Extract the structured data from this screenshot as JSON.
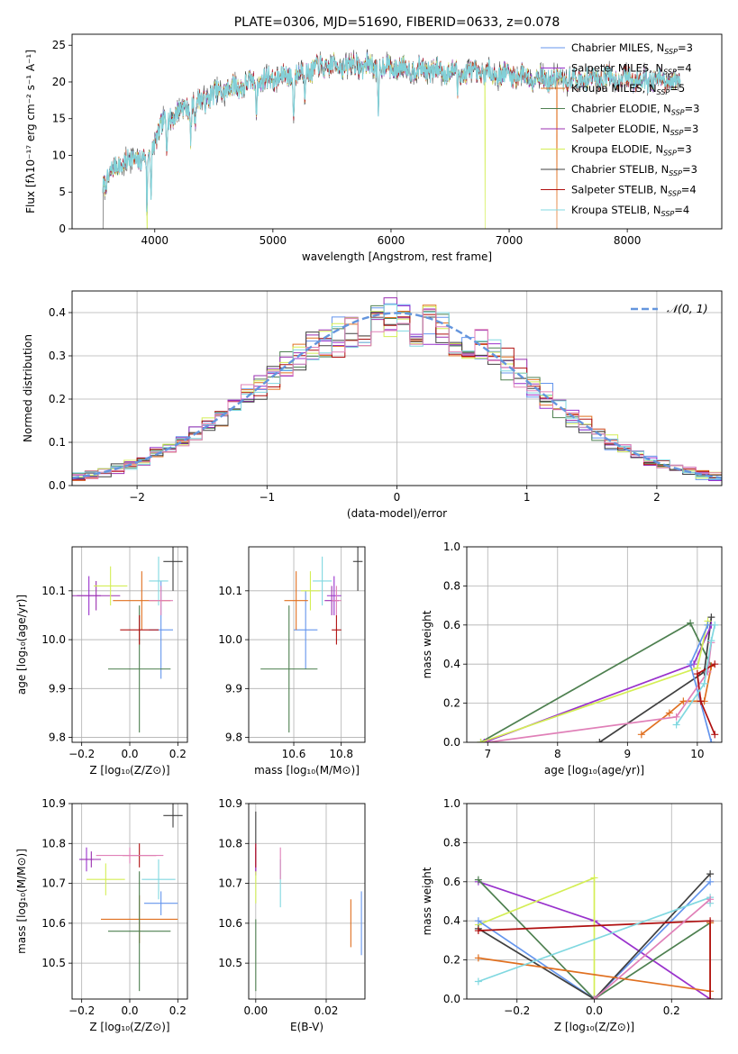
{
  "colors": {
    "Chabrier MILES": "#6495ed",
    "Salpeter MILES": "#9932cc",
    "Kroupa MILES": "#e07020",
    "Chabrier ELODIE": "#4e8050",
    "Salpeter ELODIE": "#9b30b0",
    "Kroupa ELODIE": "#d4ee55",
    "Chabrier STELIB": "#404040",
    "Salpeter STELIB": "#b01010",
    "Kroupa STELIB": "#80d8e0",
    "extra_pink": "#e080b8",
    "gaussian": "#6495dd",
    "grid": "#b0b0b0"
  },
  "chart_data": [
    {
      "id": "spectrum",
      "type": "line",
      "title": "PLATE=0306, MJD=51690, FIBERID=0633, z=0.078",
      "xlabel": "wavelength [Angstrom, rest frame]",
      "ylabel": "Flux [fλ10⁻¹⁷ erg cm⁻² s⁻¹ A⁻¹]",
      "xlim": [
        3300,
        8800
      ],
      "ylim": [
        0,
        26.5
      ],
      "xticks": [
        4000,
        5000,
        6000,
        7000,
        8000
      ],
      "yticks": [
        0,
        5,
        10,
        15,
        20,
        25
      ],
      "grid": false,
      "legend": "upper-right",
      "legend_entries": [
        {
          "label": "Chabrier MILES, N",
          "sub": "SSP",
          "suffix": "=3",
          "key": "Chabrier MILES"
        },
        {
          "label": "Salpeter MILES, N",
          "sub": "SSP",
          "suffix": "=4",
          "key": "Salpeter MILES"
        },
        {
          "label": "Kroupa MILES, N",
          "sub": "SSP",
          "suffix": "=5",
          "key": "Kroupa MILES"
        },
        {
          "label": "Chabrier ELODIE, N",
          "sub": "SSP",
          "suffix": "=3",
          "key": "Chabrier ELODIE"
        },
        {
          "label": "Salpeter ELODIE, N",
          "sub": "SSP",
          "suffix": "=3",
          "key": "Salpeter ELODIE"
        },
        {
          "label": "Kroupa ELODIE, N",
          "sub": "SSP",
          "suffix": "=3",
          "key": "Kroupa ELODIE"
        },
        {
          "label": "Chabrier STELIB, N",
          "sub": "SSP",
          "suffix": "=3",
          "key": "Chabrier STELIB"
        },
        {
          "label": "Salpeter STELIB, N",
          "sub": "SSP",
          "suffix": "=4",
          "key": "Salpeter STELIB"
        },
        {
          "label": "Kroupa STELIB, N",
          "sub": "SSP",
          "suffix": "=4",
          "key": "Kroupa STELIB"
        }
      ],
      "continuum": [
        [
          3560,
          6.0
        ],
        [
          3700,
          9.0
        ],
        [
          3850,
          9.5
        ],
        [
          3950,
          10.0
        ],
        [
          4050,
          14.0
        ],
        [
          4200,
          16.0
        ],
        [
          4400,
          17.5
        ],
        [
          4600,
          19.0
        ],
        [
          4800,
          19.8
        ],
        [
          5000,
          20.5
        ],
        [
          5200,
          21.0
        ],
        [
          5400,
          22.0
        ],
        [
          5600,
          22.3
        ],
        [
          5800,
          22.2
        ],
        [
          6000,
          22.0
        ],
        [
          6200,
          21.8
        ],
        [
          6400,
          21.5
        ],
        [
          6600,
          21.3
        ],
        [
          6800,
          21.2
        ],
        [
          7000,
          21.0
        ],
        [
          7200,
          20.7
        ],
        [
          7400,
          20.3
        ],
        [
          7600,
          20.3
        ],
        [
          7800,
          20.6
        ],
        [
          8000,
          20.5
        ],
        [
          8200,
          20.2
        ],
        [
          8450,
          19.9
        ]
      ],
      "absorption_lines": [
        [
          3934,
          8
        ],
        [
          3969,
          7
        ],
        [
          4101,
          4
        ],
        [
          4304,
          5
        ],
        [
          4341,
          3
        ],
        [
          4861,
          4
        ],
        [
          5175,
          6
        ],
        [
          5270,
          3
        ],
        [
          5892,
          7
        ],
        [
          6563,
          3
        ],
        [
          8498,
          3
        ],
        [
          8542,
          4
        ],
        [
          8662,
          4
        ]
      ],
      "model_dropouts": [
        {
          "model": "Kroupa MILES",
          "x": 7405
        },
        {
          "model": "Kroupa ELODIE",
          "x": 6795
        },
        {
          "model": "Kroupa ELODIE",
          "x": 3935
        },
        {
          "model": "Chabrier STELIB",
          "x": 3560
        }
      ]
    },
    {
      "id": "residuals",
      "type": "histogram",
      "xlabel": "(data-model)/error",
      "ylabel": "Normed distribution",
      "xlim": [
        -2.5,
        2.5
      ],
      "ylim": [
        0,
        0.45
      ],
      "xticks": [
        -2,
        -1,
        0,
        1,
        2
      ],
      "yticks": [
        0.0,
        0.1,
        0.2,
        0.3,
        0.4
      ],
      "bin_width": 0.1,
      "bin_start": -2.5,
      "grid": true,
      "legend": "upper-right",
      "gaussian_label": "𝒩(0, 1)",
      "gaussian": {
        "mean": 0,
        "sigma": 1
      }
    },
    {
      "id": "age_vs_Z",
      "type": "errorbar",
      "xlabel": "Z [log₁₀(Z/Z⊙)]",
      "ylabel": "age  [log₁₀(age/yr)]",
      "xlim": [
        -0.24,
        0.24
      ],
      "ylim": [
        9.79,
        10.19
      ],
      "xticks": [
        -0.2,
        0.0,
        0.2
      ],
      "yticks": [
        9.8,
        9.9,
        10.0,
        10.1
      ],
      "grid": true,
      "points": [
        {
          "model": "Chabrier MILES",
          "x": 0.13,
          "y": 10.02,
          "xerr": 0.05,
          "yerr": 0.1
        },
        {
          "model": "Salpeter MILES",
          "x": -0.17,
          "y": 10.09,
          "xerr": 0.05,
          "yerr": 0.04
        },
        {
          "model": "Kroupa MILES",
          "x": 0.05,
          "y": 10.08,
          "xerr": 0.12,
          "yerr": 0.06
        },
        {
          "model": "Chabrier ELODIE",
          "x": 0.04,
          "y": 9.94,
          "xerr": 0.13,
          "yerr": 0.13
        },
        {
          "model": "Salpeter ELODIE",
          "x": -0.14,
          "y": 10.09,
          "xerr": 0.1,
          "yerr": 0.03
        },
        {
          "model": "Kroupa ELODIE",
          "x": -0.08,
          "y": 10.11,
          "xerr": 0.07,
          "yerr": 0.04
        },
        {
          "model": "Chabrier STELIB",
          "x": 0.18,
          "y": 10.16,
          "xerr": 0.04,
          "yerr": 0.06
        },
        {
          "model": "Salpeter STELIB",
          "x": 0.04,
          "y": 10.02,
          "xerr": 0.08,
          "yerr": 0.03
        },
        {
          "model": "Kroupa STELIB",
          "x": 0.12,
          "y": 10.12,
          "xerr": 0.04,
          "yerr": 0.05
        },
        {
          "model": "extra_pink",
          "x": 0.13,
          "y": 10.08,
          "xerr": 0.05,
          "yerr": 0.03
        }
      ]
    },
    {
      "id": "age_vs_mass",
      "type": "errorbar",
      "xlabel": "mass [log₁₀(M/M⊙)]",
      "ylabel": "",
      "xlim": [
        10.41,
        10.9
      ],
      "ylim": [
        9.79,
        10.19
      ],
      "xticks": [
        10.6,
        10.8
      ],
      "yticks": [
        9.8,
        9.9,
        10.0,
        10.1
      ],
      "grid": true,
      "points": [
        {
          "model": "Chabrier MILES",
          "x": 10.65,
          "y": 10.02,
          "xerr": 0.05,
          "yerr": 0.08
        },
        {
          "model": "Salpeter MILES",
          "x": 10.77,
          "y": 10.09,
          "xerr": 0.03,
          "yerr": 0.04
        },
        {
          "model": "Kroupa MILES",
          "x": 10.61,
          "y": 10.08,
          "xerr": 0.05,
          "yerr": 0.06
        },
        {
          "model": "Chabrier ELODIE",
          "x": 10.58,
          "y": 9.94,
          "xerr": 0.12,
          "yerr": 0.13
        },
        {
          "model": "Salpeter ELODIE",
          "x": 10.76,
          "y": 10.08,
          "xerr": 0.03,
          "yerr": 0.03
        },
        {
          "model": "Kroupa ELODIE",
          "x": 10.67,
          "y": 10.1,
          "xerr": 0.04,
          "yerr": 0.04
        },
        {
          "model": "Chabrier STELIB",
          "x": 10.87,
          "y": 10.16,
          "xerr": 0.02,
          "yerr": 0.06
        },
        {
          "model": "Salpeter STELIB",
          "x": 10.78,
          "y": 10.02,
          "xerr": 0.02,
          "yerr": 0.03
        },
        {
          "model": "Kroupa STELIB",
          "x": 10.72,
          "y": 10.12,
          "xerr": 0.04,
          "yerr": 0.05
        },
        {
          "model": "extra_pink",
          "x": 10.78,
          "y": 10.08,
          "xerr": 0.02,
          "yerr": 0.03
        }
      ]
    },
    {
      "id": "weight_vs_age",
      "type": "line",
      "xlabel": "age  [log₁₀(age/yr)]",
      "ylabel": "mass weight",
      "xlim": [
        6.7,
        10.35
      ],
      "ylim": [
        0,
        1
      ],
      "xticks": [
        7,
        8,
        9,
        10
      ],
      "yticks": [
        0.0,
        0.2,
        0.4,
        0.6,
        0.8,
        1.0
      ],
      "grid": true,
      "series": [
        {
          "model": "Chabrier ELODIE",
          "points": [
            [
              10.2,
              0.39
            ],
            [
              9.9,
              0.61
            ],
            [
              6.9,
              0.0
            ]
          ]
        },
        {
          "model": "Chabrier STELIB",
          "points": [
            [
              8.6,
              0.0
            ],
            [
              10.1,
              0.36
            ],
            [
              10.2,
              0.64
            ]
          ]
        },
        {
          "model": "Salpeter MILES",
          "points": [
            [
              6.95,
              0.0
            ],
            [
              9.95,
              0.4
            ],
            [
              10.2,
              0.6
            ]
          ]
        },
        {
          "model": "Kroupa ELODIE",
          "points": [
            [
              6.9,
              0.0
            ],
            [
              10.0,
              0.38
            ],
            [
              10.15,
              0.62
            ]
          ]
        },
        {
          "model": "Chabrier MILES",
          "points": [
            [
              10.15,
              0.6
            ],
            [
              9.9,
              0.4
            ],
            [
              10.2,
              0.0
            ]
          ]
        },
        {
          "model": "Kroupa MILES",
          "points": [
            [
              9.2,
              0.04
            ],
            [
              9.6,
              0.15
            ],
            [
              9.8,
              0.21
            ],
            [
              10.1,
              0.21
            ],
            [
              10.2,
              0.39
            ]
          ]
        },
        {
          "model": "extra_pink",
          "points": [
            [
              7.0,
              0.0
            ],
            [
              9.7,
              0.13
            ],
            [
              10.15,
              0.36
            ],
            [
              10.2,
              0.51
            ]
          ]
        },
        {
          "model": "Salpeter STELIB",
          "points": [
            [
              10.25,
              0.04
            ],
            [
              10.05,
              0.21
            ],
            [
              10.0,
              0.35
            ],
            [
              10.25,
              0.4
            ]
          ]
        },
        {
          "model": "Kroupa STELIB",
          "points": [
            [
              9.7,
              0.09
            ],
            [
              10.1,
              0.3
            ],
            [
              10.2,
              0.52
            ],
            [
              10.25,
              0.6
            ]
          ]
        }
      ]
    },
    {
      "id": "mass_vs_Z",
      "type": "errorbar",
      "xlabel": "Z [log₁₀(Z/Z⊙)]",
      "ylabel": "mass [log₁₀(M/M⊙)]",
      "xlim": [
        -0.24,
        0.24
      ],
      "ylim": [
        10.41,
        10.9
      ],
      "xticks": [
        -0.2,
        0.0,
        0.2
      ],
      "yticks": [
        10.5,
        10.6,
        10.7,
        10.8,
        10.9
      ],
      "grid": true,
      "points": [
        {
          "model": "Chabrier MILES",
          "x": 0.13,
          "y": 10.65,
          "xerr": 0.07,
          "yerr": 0.03
        },
        {
          "model": "Salpeter MILES",
          "x": -0.18,
          "y": 10.76,
          "xerr": 0.03,
          "yerr": 0.03
        },
        {
          "model": "Kroupa MILES",
          "x": 0.04,
          "y": 10.61,
          "xerr": 0.16,
          "yerr": 0.06
        },
        {
          "model": "Chabrier ELODIE",
          "x": 0.04,
          "y": 10.58,
          "xerr": 0.13,
          "yerr": 0.15
        },
        {
          "model": "Salpeter ELODIE",
          "x": -0.16,
          "y": 10.76,
          "xerr": 0.04,
          "yerr": 0.02
        },
        {
          "model": "Kroupa ELODIE",
          "x": -0.1,
          "y": 10.71,
          "xerr": 0.08,
          "yerr": 0.04
        },
        {
          "model": "Chabrier STELIB",
          "x": 0.18,
          "y": 10.87,
          "xerr": 0.04,
          "yerr": 0.03
        },
        {
          "model": "Salpeter STELIB",
          "x": 0.04,
          "y": 10.77,
          "xerr": 0.07,
          "yerr": 0.03
        },
        {
          "model": "Kroupa STELIB",
          "x": 0.12,
          "y": 10.71,
          "xerr": 0.07,
          "yerr": 0.05
        },
        {
          "model": "extra_pink",
          "x": 0.0,
          "y": 10.77,
          "xerr": 0.14,
          "yerr": 0.02
        }
      ]
    },
    {
      "id": "mass_vs_EBV",
      "type": "errorbar",
      "xlabel": "E(B-V)",
      "ylabel": "",
      "xlim": [
        -0.002,
        0.031
      ],
      "ylim": [
        10.41,
        10.9
      ],
      "xticks": [
        0.0,
        0.02
      ],
      "yticks": [
        10.5,
        10.6,
        10.7,
        10.8,
        10.9
      ],
      "grid": true,
      "points": [
        {
          "model": "Chabrier MILES",
          "x": 0.03,
          "y": 10.6,
          "xerr": 0,
          "yerr": 0.08
        },
        {
          "model": "Salpeter MILES",
          "x": 0.0,
          "y": 10.76,
          "xerr": 0,
          "yerr": 0.04
        },
        {
          "model": "Kroupa MILES",
          "x": 0.027,
          "y": 10.6,
          "xerr": 0,
          "yerr": 0.06
        },
        {
          "model": "Chabrier ELODIE",
          "x": 0.0,
          "y": 10.52,
          "xerr": 0,
          "yerr": 0.09
        },
        {
          "model": "Salpeter ELODIE",
          "x": 0.0,
          "y": 10.76,
          "xerr": 0,
          "yerr": 0.03
        },
        {
          "model": "Kroupa ELODIE",
          "x": 0.0,
          "y": 10.69,
          "xerr": 0,
          "yerr": 0.04
        },
        {
          "model": "Chabrier STELIB",
          "x": 0.0,
          "y": 10.84,
          "xerr": 0,
          "yerr": 0.04
        },
        {
          "model": "Salpeter STELIB",
          "x": 0.0,
          "y": 10.77,
          "xerr": 0,
          "yerr": 0.03
        },
        {
          "model": "Kroupa STELIB",
          "x": 0.007,
          "y": 10.7,
          "xerr": 0,
          "yerr": 0.06
        },
        {
          "model": "extra_pink",
          "x": 0.007,
          "y": 10.75,
          "xerr": 0,
          "yerr": 0.04
        }
      ]
    },
    {
      "id": "weight_vs_Z",
      "type": "line",
      "xlabel": "Z [log₁₀(Z/Z⊙)]",
      "ylabel": "mass weight",
      "xlim": [
        -0.33,
        0.33
      ],
      "ylim": [
        0,
        1
      ],
      "xticks": [
        -0.2,
        0.0,
        0.2
      ],
      "yticks": [
        0.0,
        0.2,
        0.4,
        0.6,
        0.8,
        1.0
      ],
      "grid": true,
      "series": [
        {
          "model": "Salpeter MILES",
          "points": [
            [
              -0.3,
              0.6
            ],
            [
              0.0,
              0.4
            ],
            [
              0.3,
              0.0
            ]
          ]
        },
        {
          "model": "Chabrier ELODIE",
          "points": [
            [
              -0.3,
              0.61
            ],
            [
              0.0,
              0.0
            ],
            [
              0.3,
              0.39
            ]
          ]
        },
        {
          "model": "Kroupa ELODIE",
          "points": [
            [
              -0.3,
              0.38
            ],
            [
              0.0,
              0.62
            ],
            [
              0.0,
              0.0
            ]
          ]
        },
        {
          "model": "Chabrier MILES",
          "points": [
            [
              -0.3,
              0.4
            ],
            [
              0.0,
              0.0
            ],
            [
              0.3,
              0.6
            ]
          ]
        },
        {
          "model": "Chabrier STELIB",
          "points": [
            [
              -0.3,
              0.36
            ],
            [
              0.0,
              0.0
            ],
            [
              0.3,
              0.64
            ]
          ]
        },
        {
          "model": "Kroupa MILES",
          "points": [
            [
              -0.3,
              0.21
            ],
            [
              0.3,
              0.04
            ],
            [
              0.3,
              0.39
            ]
          ]
        },
        {
          "model": "Salpeter STELIB",
          "points": [
            [
              -0.3,
              0.35
            ],
            [
              0.3,
              0.4
            ],
            [
              0.3,
              0.0
            ]
          ]
        },
        {
          "model": "Kroupa STELIB",
          "points": [
            [
              -0.3,
              0.09
            ],
            [
              0.3,
              0.52
            ],
            [
              0.3,
              0.49
            ]
          ]
        },
        {
          "model": "extra_pink",
          "points": [
            [
              0.0,
              0.0
            ],
            [
              0.3,
              0.51
            ]
          ]
        }
      ]
    }
  ]
}
